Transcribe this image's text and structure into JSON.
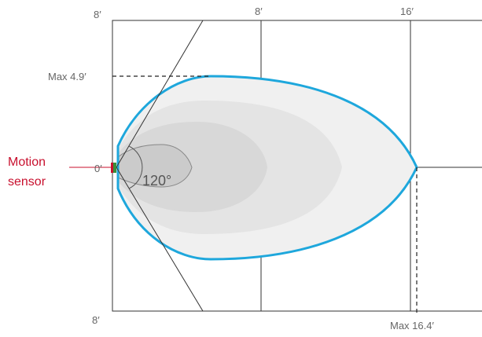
{
  "labels": {
    "top_left": "8′",
    "top_mid": "8′",
    "top_right": "16′",
    "origin": "0′",
    "bottom_left": "8′",
    "max_width": "Max 4.9′",
    "max_range": "Max 16.4′",
    "angle": "120°"
  },
  "sensor": {
    "line1": "Motion",
    "line2": "sensor"
  },
  "colors": {
    "outline": "#1ea7dc",
    "sensor_label": "#c8102e",
    "sensor_body": "#3a8f3a",
    "sensor_cap": "#c8102e",
    "grid": "#333333",
    "zone_1": "#f0f0f0",
    "zone_2": "#e4e4e4",
    "zone_3": "#d8d8d8",
    "zone_4": "#cbcbcb"
  }
}
